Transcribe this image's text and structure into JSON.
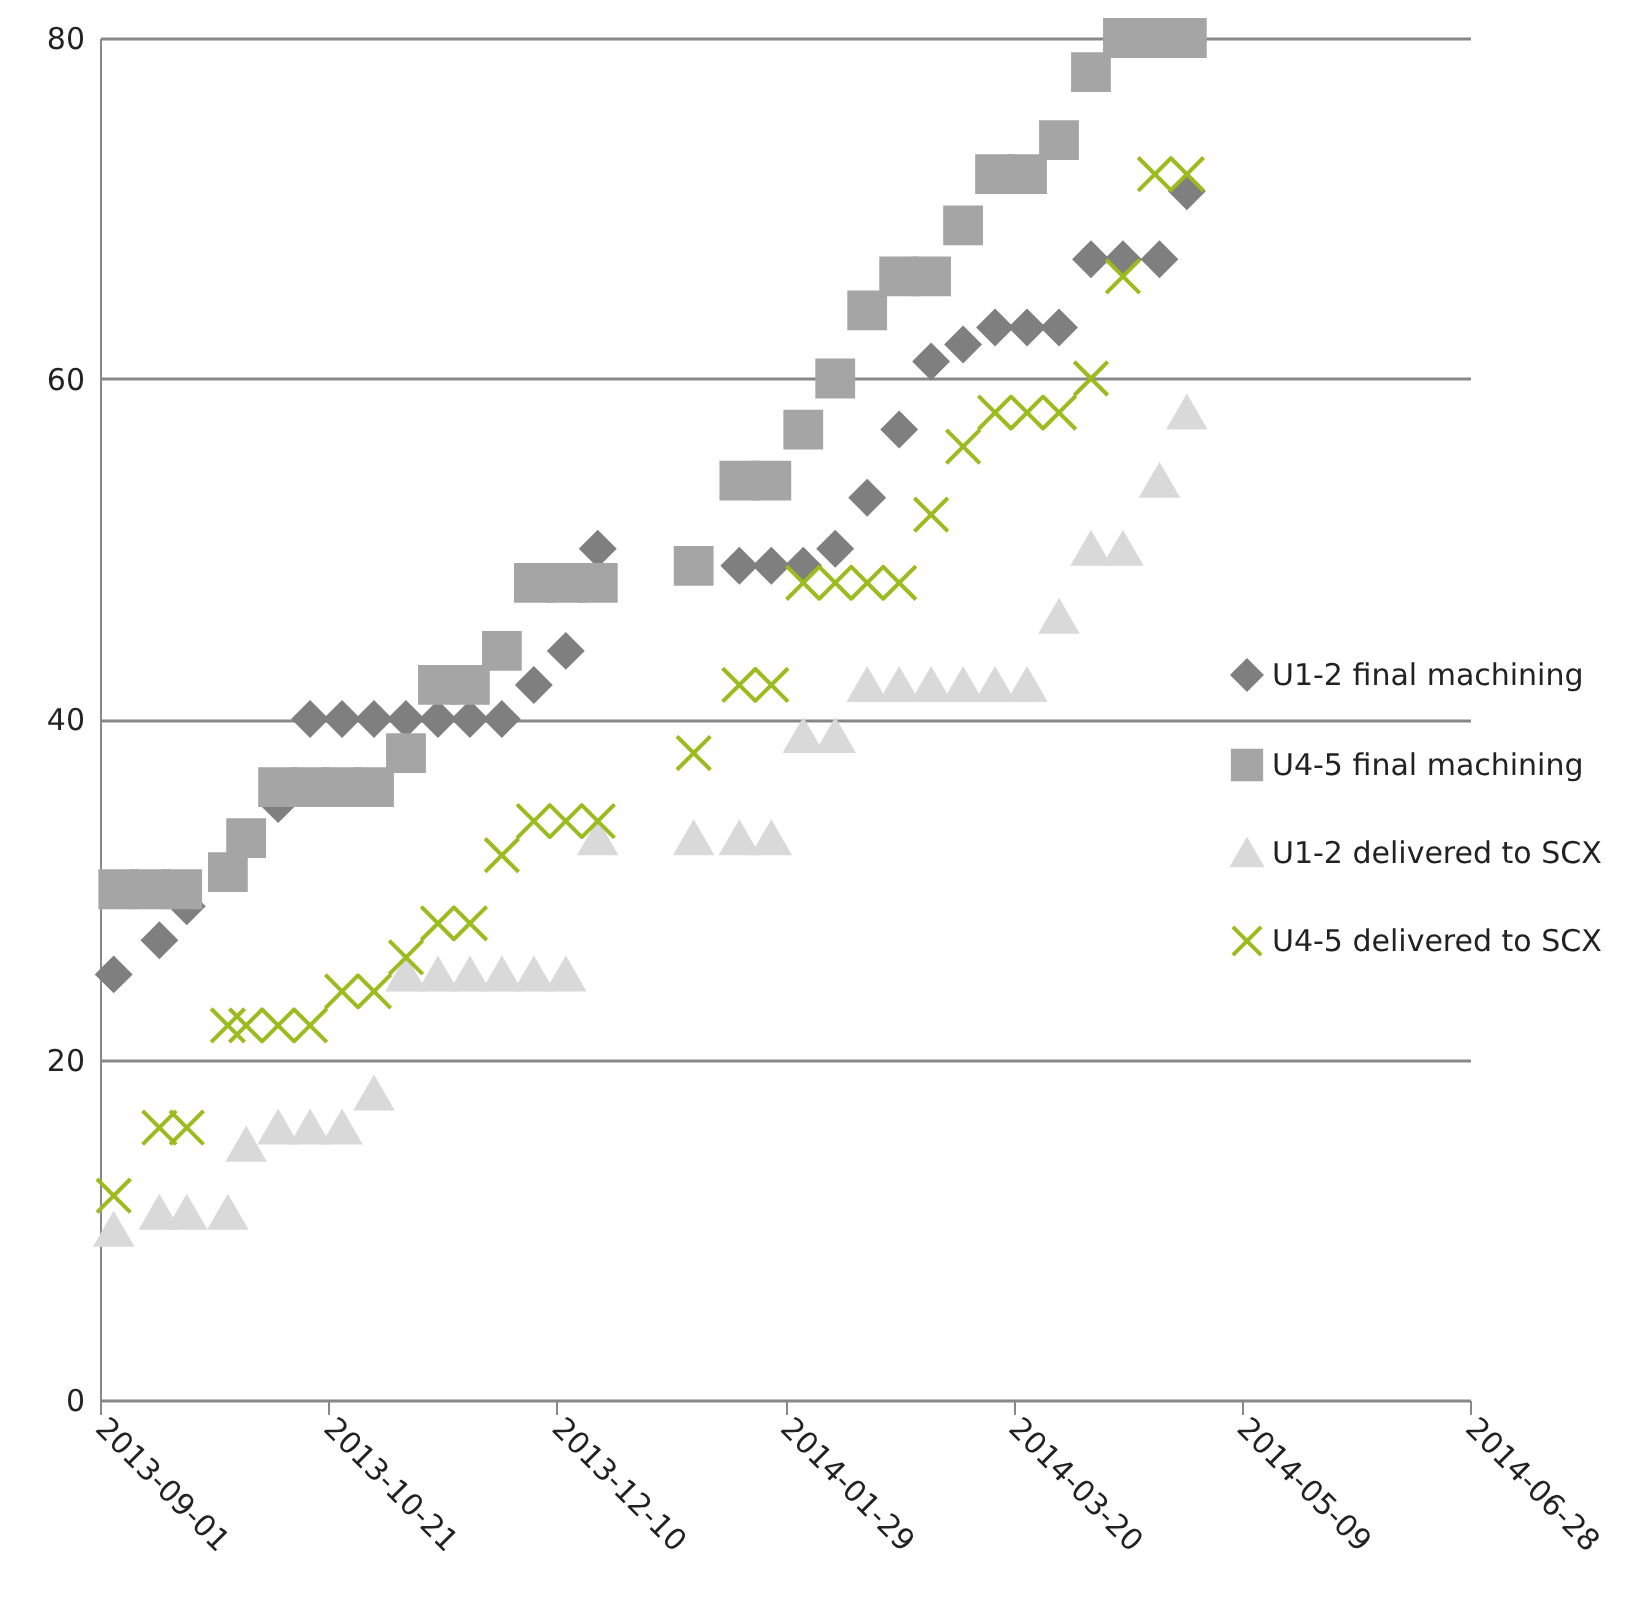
{
  "chart_data": {
    "type": "scatter",
    "xlim": [
      "2013-09-01",
      "2014-06-28"
    ],
    "xticks": [
      "2013-09-01",
      "2013-10-21",
      "2013-12-10",
      "2014-01-29",
      "2014-03-20",
      "2014-05-09",
      "2014-06-28"
    ],
    "ylim": [
      0,
      80
    ],
    "yticks": [
      0,
      20,
      40,
      60,
      80
    ],
    "grid": "y",
    "legend": "right",
    "series": [
      {
        "name": "U1-2 final machining",
        "color": "#7f7f7f",
        "marker": "diamond",
        "x": [
          "2013-09-04",
          "2013-09-14",
          "2013-09-20",
          "2013-10-10",
          "2013-10-17",
          "2013-10-24",
          "2013-10-31",
          "2013-11-07",
          "2013-11-14",
          "2013-11-21",
          "2013-11-28",
          "2013-12-05",
          "2013-12-12",
          "2013-12-19",
          "2014-01-19",
          "2014-01-26",
          "2014-02-02",
          "2014-02-09",
          "2014-02-16",
          "2014-02-23",
          "2014-03-02",
          "2014-03-09",
          "2014-03-16",
          "2014-03-23",
          "2014-03-30",
          "2014-04-06",
          "2014-04-13",
          "2014-04-21",
          "2014-04-27"
        ],
        "values": [
          25,
          27,
          29,
          35,
          40,
          40,
          40,
          40,
          40,
          40,
          40,
          42,
          44,
          50,
          49,
          49,
          49,
          50,
          53,
          57,
          61,
          62,
          63,
          63,
          63,
          67,
          67,
          67,
          71
        ]
      },
      {
        "name": "U4-5 final machining",
        "color": "#a5a5a5",
        "marker": "square",
        "x": [
          "2013-09-05",
          "2013-09-12",
          "2013-09-19",
          "2013-09-29",
          "2013-10-03",
          "2013-10-10",
          "2013-10-17",
          "2013-10-24",
          "2013-10-31",
          "2013-11-07",
          "2013-11-14",
          "2013-11-21",
          "2013-11-28",
          "2013-12-05",
          "2013-12-12",
          "2013-12-19",
          "2014-01-09",
          "2014-01-19",
          "2014-01-26",
          "2014-02-02",
          "2014-02-09",
          "2014-02-16",
          "2014-02-23",
          "2014-03-02",
          "2014-03-09",
          "2014-03-16",
          "2014-03-23",
          "2014-03-30",
          "2014-04-06",
          "2014-04-13",
          "2014-04-20",
          "2014-04-27"
        ],
        "values": [
          30,
          30,
          30,
          31,
          33,
          36,
          36,
          36,
          36,
          38,
          42,
          42,
          44,
          48,
          48,
          48,
          49,
          54,
          54,
          57,
          60,
          64,
          66,
          66,
          69,
          72,
          72,
          74,
          78,
          80,
          80,
          80
        ]
      },
      {
        "name": "U1-2 delivered to SCX",
        "color": "#d9d9d9",
        "marker": "triangle",
        "x": [
          "2013-09-04",
          "2013-09-14",
          "2013-09-20",
          "2013-09-29",
          "2013-10-03",
          "2013-10-10",
          "2013-10-17",
          "2013-10-24",
          "2013-10-31",
          "2013-11-07",
          "2013-11-14",
          "2013-11-21",
          "2013-11-28",
          "2013-12-05",
          "2013-12-12",
          "2013-12-19",
          "2014-01-09",
          "2014-01-19",
          "2014-01-26",
          "2014-02-02",
          "2014-02-09",
          "2014-02-16",
          "2014-02-23",
          "2014-03-02",
          "2014-03-09",
          "2014-03-16",
          "2014-03-23",
          "2014-03-30",
          "2014-04-06",
          "2014-04-13",
          "2014-04-21",
          "2014-04-27"
        ],
        "values": [
          10,
          11,
          11,
          11,
          15,
          16,
          16,
          16,
          18,
          25,
          25,
          25,
          25,
          25,
          25,
          33,
          33,
          33,
          33,
          39,
          39,
          42,
          42,
          42,
          42,
          42,
          42,
          46,
          50,
          50,
          54,
          58
        ]
      },
      {
        "name": "U4-5 delivered to SCX",
        "color": "#9bbb1f",
        "marker": "cross",
        "x": [
          "2013-09-04",
          "2013-09-14",
          "2013-09-20",
          "2013-09-29",
          "2013-10-03",
          "2013-10-10",
          "2013-10-17",
          "2013-10-24",
          "2013-10-31",
          "2013-11-07",
          "2013-11-14",
          "2013-11-21",
          "2013-11-28",
          "2013-12-05",
          "2013-12-12",
          "2013-12-19",
          "2014-01-09",
          "2014-01-19",
          "2014-01-26",
          "2014-02-02",
          "2014-02-09",
          "2014-02-16",
          "2014-02-23",
          "2014-03-02",
          "2014-03-09",
          "2014-03-16",
          "2014-03-23",
          "2014-03-30",
          "2014-04-06",
          "2014-04-13",
          "2014-04-20",
          "2014-04-27"
        ],
        "values": [
          12,
          16,
          16,
          22,
          22,
          22,
          22,
          24,
          24,
          26,
          28,
          28,
          32,
          34,
          34,
          34,
          38,
          42,
          42,
          48,
          48,
          48,
          48,
          52,
          56,
          58,
          58,
          58,
          60,
          66,
          72,
          72
        ]
      }
    ]
  }
}
